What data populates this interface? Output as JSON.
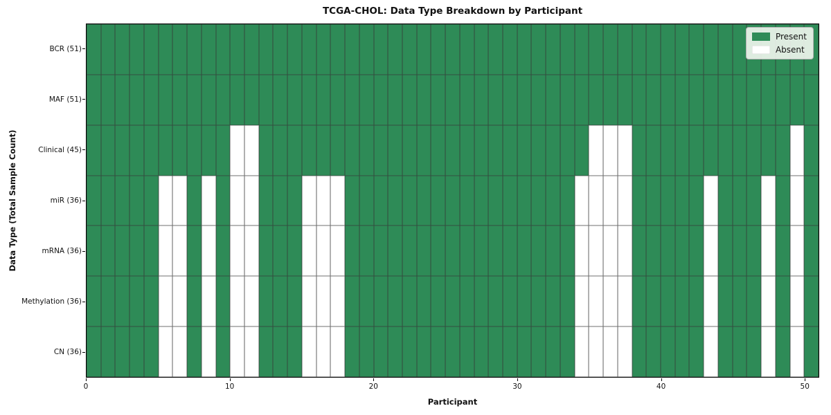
{
  "title": "TCGA-CHOL: Data Type Breakdown by Participant",
  "chart_data": {
    "type": "heatmap",
    "title": "TCGA-CHOL: Data Type Breakdown by Participant",
    "xlabel": "Participant",
    "ylabel": "Data Type (Total Sample Count)",
    "n_participants": 51,
    "x_range": [
      0,
      51
    ],
    "x_ticks": [
      0,
      10,
      20,
      30,
      40,
      50
    ],
    "grid": "cell-borders",
    "legend_position": "upper right",
    "legend": {
      "entries": [
        {
          "label": "Present",
          "color": "#2e8b57"
        },
        {
          "label": "Absent",
          "color": "#ffffff"
        }
      ]
    },
    "rows": [
      {
        "label": "BCR (51)",
        "total_samples": 51,
        "absent_participants": []
      },
      {
        "label": "MAF (51)",
        "total_samples": 51,
        "absent_participants": []
      },
      {
        "label": "Clinical (45)",
        "total_samples": 45,
        "absent_participants": [
          10,
          11,
          35,
          36,
          37,
          49
        ]
      },
      {
        "label": "miR (36)",
        "total_samples": 36,
        "absent_participants": [
          5,
          6,
          8,
          10,
          11,
          15,
          16,
          17,
          34,
          35,
          36,
          37,
          43,
          47,
          49
        ]
      },
      {
        "label": "mRNA (36)",
        "total_samples": 36,
        "absent_participants": [
          5,
          6,
          8,
          10,
          11,
          15,
          16,
          17,
          34,
          35,
          36,
          37,
          43,
          47,
          49
        ]
      },
      {
        "label": "Methylation (36)",
        "total_samples": 36,
        "absent_participants": [
          5,
          6,
          8,
          10,
          11,
          15,
          16,
          17,
          34,
          35,
          36,
          37,
          43,
          47,
          49
        ]
      },
      {
        "label": "CN (36)",
        "total_samples": 36,
        "absent_participants": [
          5,
          6,
          8,
          10,
          11,
          15,
          16,
          17,
          34,
          35,
          36,
          37,
          43,
          47,
          49
        ]
      }
    ],
    "colors": {
      "present": "#2e8b57",
      "absent": "#ffffff",
      "cell_border": "#3a3a3a",
      "frame": "#000000"
    }
  }
}
